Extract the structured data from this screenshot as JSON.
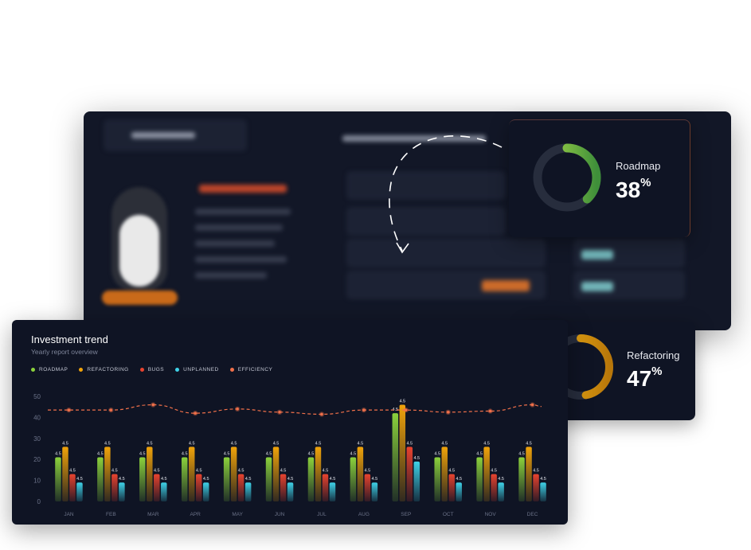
{
  "roadmap_card": {
    "label": "Roadmap",
    "value": "38",
    "unit": "%",
    "fraction": 0.38,
    "color": "#8bd13c"
  },
  "refactoring_card": {
    "label": "Refactoring",
    "value": "47",
    "unit": "%",
    "fraction": 0.47,
    "color": "#f0a30a"
  },
  "chart": {
    "title": "Investment trend",
    "subtitle": "Yearly report overview"
  },
  "chart_data": {
    "type": "bar",
    "categories": [
      "JAN",
      "FEB",
      "MAR",
      "APR",
      "MAY",
      "JUN",
      "JUL",
      "AUG",
      "SEP",
      "OCT",
      "NOV",
      "DEC"
    ],
    "ylim": [
      0,
      50
    ],
    "yticks": [
      0,
      10,
      20,
      30,
      40,
      50
    ],
    "bar_label": "4.5",
    "series": [
      {
        "name": "ROADMAP",
        "color": "#8bd13c",
        "values": [
          21,
          21,
          21,
          21,
          21,
          21,
          21,
          21,
          42,
          21,
          21,
          21
        ]
      },
      {
        "name": "REFACTORING",
        "color": "#f0a30a",
        "values": [
          26,
          26,
          26,
          26,
          26,
          26,
          26,
          26,
          46,
          26,
          26,
          26
        ]
      },
      {
        "name": "BUGS",
        "color": "#e8432f",
        "values": [
          13,
          13,
          13,
          13,
          13,
          13,
          13,
          13,
          26,
          13,
          13,
          13
        ]
      },
      {
        "name": "UNPLANNED",
        "color": "#3fd2e8",
        "values": [
          9,
          9,
          9,
          9,
          9,
          9,
          9,
          9,
          19,
          9,
          9,
          9
        ]
      },
      {
        "name": "EFFICIENCY",
        "color": "#f0704a",
        "type": "line",
        "values": [
          43.5,
          43.5,
          46,
          42,
          44,
          42.5,
          41.5,
          43.5,
          43.5,
          42.5,
          43,
          46
        ]
      }
    ]
  }
}
